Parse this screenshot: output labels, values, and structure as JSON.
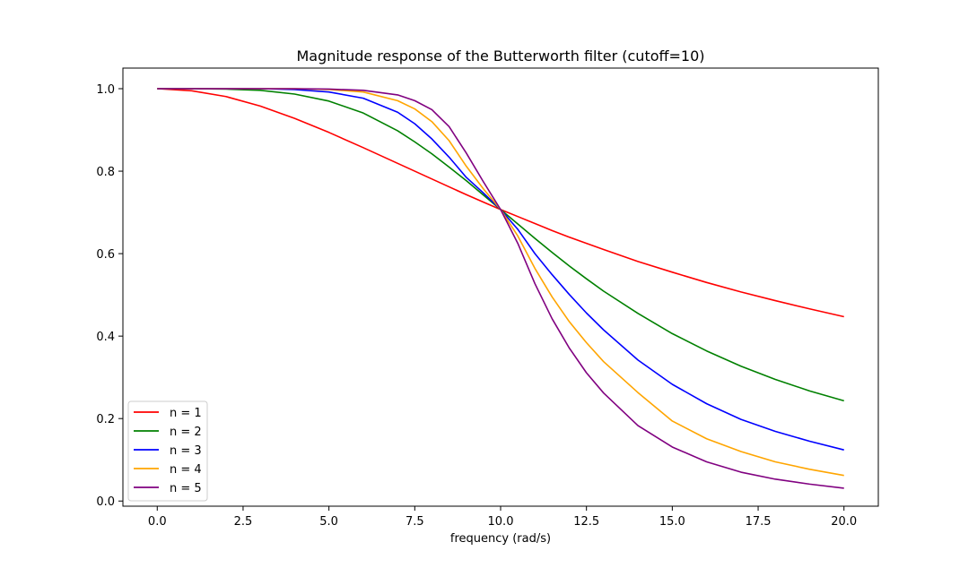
{
  "chart_data": {
    "type": "line",
    "title": "Magnitude response of the Butterworth filter (cutoff=10)",
    "xlabel": "frequency (rad/s)",
    "ylabel": "",
    "cutoff": 10,
    "xlim": [
      -1,
      21
    ],
    "ylim": [
      -0.0125,
      1.05
    ],
    "x_ticks": [
      0.0,
      2.5,
      5.0,
      7.5,
      10.0,
      12.5,
      15.0,
      17.5,
      20.0
    ],
    "x_tick_labels": [
      "0.0",
      "2.5",
      "5.0",
      "7.5",
      "10.0",
      "12.5",
      "15.0",
      "17.5",
      "20.0"
    ],
    "y_ticks": [
      0.0,
      0.2,
      0.4,
      0.6,
      0.8,
      1.0
    ],
    "y_tick_labels": [
      "0.0",
      "0.2",
      "0.4",
      "0.6",
      "0.8",
      "1.0"
    ],
    "grid": false,
    "legend_position": "lower-left",
    "x": [
      0,
      1,
      2,
      3,
      4,
      5,
      6,
      7,
      7.5,
      8,
      8.5,
      9,
      9.5,
      10,
      10.5,
      11,
      11.5,
      12,
      12.5,
      13,
      14,
      15,
      16,
      17,
      18,
      19,
      20
    ],
    "series": [
      {
        "name": "n = 1",
        "color": "#ff0000",
        "values": [
          1.0,
          0.995,
          0.981,
          0.958,
          0.928,
          0.894,
          0.857,
          0.819,
          0.8,
          0.781,
          0.762,
          0.743,
          0.725,
          0.707,
          0.69,
          0.673,
          0.656,
          0.64,
          0.625,
          0.61,
          0.581,
          0.555,
          0.53,
          0.507,
          0.486,
          0.466,
          0.447
        ]
      },
      {
        "name": "n = 2",
        "color": "#008000",
        "values": [
          1.0,
          1.0,
          0.999,
          0.996,
          0.987,
          0.97,
          0.941,
          0.898,
          0.871,
          0.842,
          0.81,
          0.777,
          0.742,
          0.707,
          0.672,
          0.637,
          0.603,
          0.57,
          0.539,
          0.509,
          0.455,
          0.406,
          0.364,
          0.327,
          0.295,
          0.267,
          0.243
        ]
      },
      {
        "name": "n = 3",
        "color": "#0000ff",
        "values": [
          1.0,
          1.0,
          1.0,
          1.0,
          0.998,
          0.992,
          0.977,
          0.943,
          0.915,
          0.878,
          0.834,
          0.785,
          0.747,
          0.707,
          0.659,
          0.6,
          0.549,
          0.501,
          0.456,
          0.415,
          0.342,
          0.283,
          0.236,
          0.198,
          0.169,
          0.145,
          0.124
        ]
      },
      {
        "name": "n = 4",
        "color": "#ffa500",
        "values": [
          1.0,
          1.0,
          1.0,
          1.0,
          1.0,
          0.998,
          0.992,
          0.971,
          0.951,
          0.92,
          0.874,
          0.812,
          0.757,
          0.707,
          0.643,
          0.564,
          0.495,
          0.435,
          0.384,
          0.338,
          0.263,
          0.194,
          0.151,
          0.12,
          0.095,
          0.077,
          0.062
        ]
      },
      {
        "name": "n = 5",
        "color": "#800080",
        "values": [
          1.0,
          1.0,
          1.0,
          1.0,
          1.0,
          0.999,
          0.996,
          0.985,
          0.971,
          0.949,
          0.908,
          0.844,
          0.774,
          0.707,
          0.625,
          0.527,
          0.442,
          0.371,
          0.311,
          0.262,
          0.183,
          0.131,
          0.095,
          0.07,
          0.053,
          0.041,
          0.031
        ]
      }
    ]
  }
}
